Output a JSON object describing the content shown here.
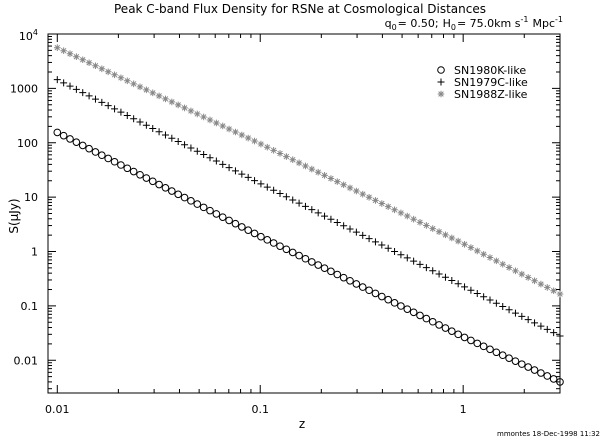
{
  "chart_data": {
    "type": "scatter",
    "title": "Peak C-band Flux Density for RSNe at Cosmological Distances",
    "subtitle": {
      "q_symbol": "q",
      "q_sub": "0",
      "q_text": "= 0.50;",
      "h_symbol": "H",
      "h_sub": "0",
      "h_text": "= 75.0km s",
      "s_exp": "-1",
      "mpc_text": "Mpc",
      "mpc_exp": "-1"
    },
    "xlabel": "z",
    "ylabel": "S(μJy)",
    "xscale": "log",
    "yscale": "log",
    "xlim": [
      0.009,
      3.0
    ],
    "ylim": [
      0.0025,
      10000
    ],
    "x_ticks": [
      {
        "value": 0.01,
        "label": "0.01"
      },
      {
        "value": 0.1,
        "label": "0.1"
      },
      {
        "value": 1,
        "label": "1"
      }
    ],
    "y_ticks": [
      {
        "value": 0.01,
        "label": "0.01"
      },
      {
        "value": 0.1,
        "label": "0.1"
      },
      {
        "value": 1,
        "label": "1"
      },
      {
        "value": 10,
        "label": "10"
      },
      {
        "value": 100,
        "label": "100"
      },
      {
        "value": 1000,
        "label": "1000"
      }
    ],
    "y_top_tick": {
      "value": 10000,
      "base": "10",
      "exp": "4"
    },
    "z_range": [
      0.01,
      3.0
    ],
    "points_per_series": 80,
    "legend_position": "top-right",
    "series": [
      {
        "name": "SN1980K-like",
        "marker": "circle",
        "color": "#000000",
        "anchors": [
          [
            0.01,
            155
          ],
          [
            0.1,
            1.9
          ],
          [
            1,
            0.027
          ],
          [
            3.0,
            0.004
          ]
        ]
      },
      {
        "name": "SN1979C-like",
        "marker": "plus",
        "color": "#000000",
        "anchors": [
          [
            0.01,
            1450
          ],
          [
            0.1,
            17.8
          ],
          [
            1,
            0.23
          ],
          [
            3.0,
            0.028
          ]
        ]
      },
      {
        "name": "SN1988Z-like",
        "marker": "asterisk",
        "color": "#888888",
        "anchors": [
          [
            0.01,
            5600
          ],
          [
            0.1,
            96
          ],
          [
            1,
            1.4
          ],
          [
            3.0,
            0.165
          ]
        ]
      }
    ],
    "grid": false
  },
  "footer": {
    "timestamp": "mmontes 18-Dec-1998 11:32"
  }
}
